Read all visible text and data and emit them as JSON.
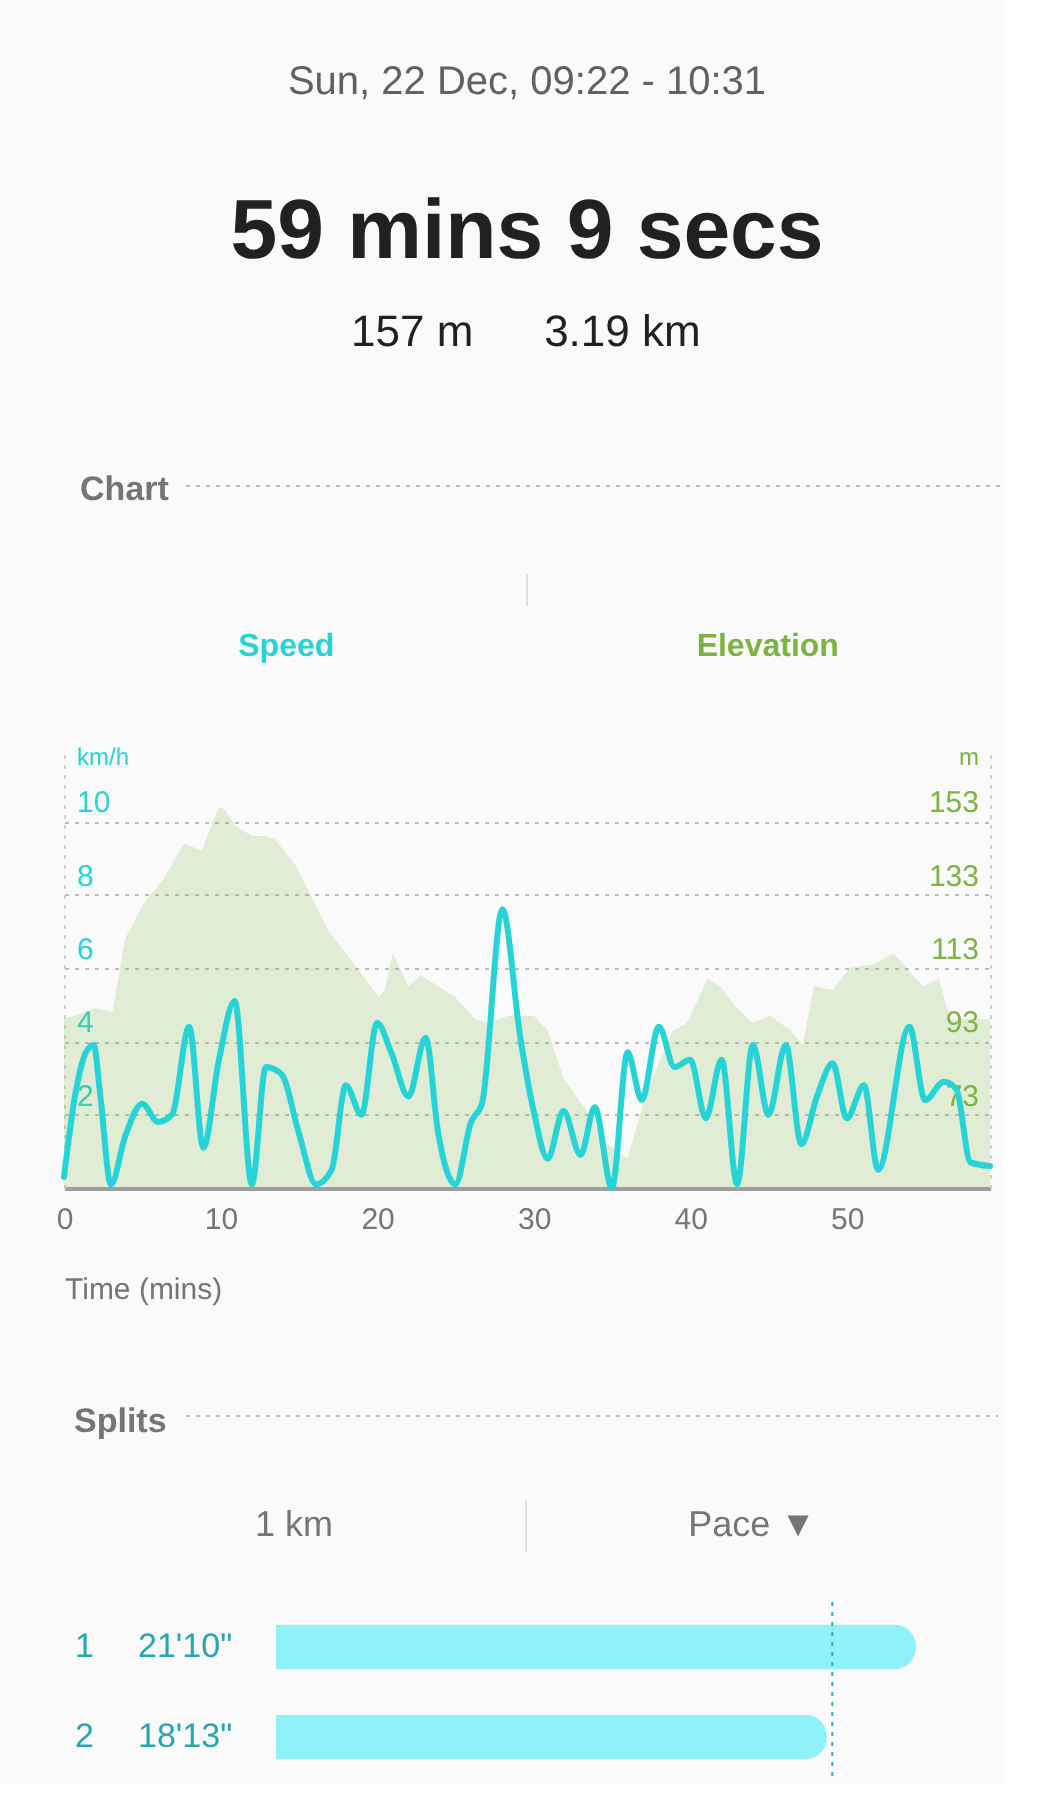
{
  "chart_data": [
    {
      "type": "line",
      "title": "Chart",
      "annotations": [
        "Sun, 22 Dec, 09:22 - 10:31",
        "59 mins 9 secs",
        "157 m",
        "3.19 km"
      ],
      "xlabel": "Time (mins)",
      "ylabel": "km/h",
      "y2label": "m",
      "xlim": [
        0,
        59.15
      ],
      "xticks": [
        0,
        10,
        20,
        30,
        40,
        50
      ],
      "ylim": [
        0,
        12
      ],
      "yticks": [
        2,
        4,
        6,
        8,
        10
      ],
      "y2lim": [
        53,
        173
      ],
      "y2ticks": [
        73,
        93,
        113,
        133,
        153
      ],
      "grid": "y",
      "legend": "top",
      "series": [
        {
          "name": "Speed",
          "type": "line",
          "color": "#26d4d8",
          "x": [
            0,
            0.7,
            1.4,
            1.9,
            2.3,
            3,
            3.9,
            5,
            6,
            6.9,
            8,
            8.9,
            9.9,
            10.9,
            12,
            12.9,
            13.9,
            15,
            16.1,
            17.1,
            18,
            19,
            20,
            20.9,
            22,
            23.1,
            23.9,
            25,
            26,
            26.7,
            28,
            29.15,
            30,
            30.9,
            31.9,
            33,
            33.9,
            35,
            36,
            36.9,
            38,
            39,
            40,
            41,
            42,
            43,
            44,
            45,
            46.1,
            47.1,
            48.1,
            49.1,
            50,
            51.1,
            52,
            54,
            55,
            56.2,
            57,
            57.9,
            59.15
          ],
          "values": [
            0.3,
            2.5,
            3.7,
            3.9,
            2.6,
            0.1,
            1.4,
            2.3,
            1.8,
            2.0,
            4.4,
            1.1,
            3.5,
            5.1,
            0.1,
            3.3,
            3.1,
            1.5,
            0.1,
            0.5,
            2.8,
            2.0,
            4.5,
            3.7,
            2.5,
            4.1,
            1.5,
            0.1,
            1.8,
            2.3,
            7.6,
            4.1,
            2.1,
            0.8,
            2.1,
            0.9,
            2.2,
            0,
            3.7,
            2.4,
            4.4,
            3.3,
            3.5,
            1.9,
            3.5,
            0.1,
            3.9,
            2.0,
            3.9,
            1.2,
            2.5,
            3.4,
            1.9,
            2.8,
            0.5,
            4.4,
            2.4,
            2.9,
            2.7,
            0.7,
            0.6
          ]
        },
        {
          "name": "Elevation",
          "type": "area",
          "axis": "y2",
          "color": "#7cb342",
          "x": [
            0,
            2,
            3.1,
            3.9,
            5,
            6.3,
            7.7,
            8.8,
            9.9,
            10.3,
            10.9,
            12,
            12.9,
            13.5,
            14.8,
            16.9,
            18.2,
            20.1,
            20.5,
            21,
            22,
            22.8,
            25,
            26.3,
            27.1,
            28.4,
            30,
            30.9,
            31.9,
            33.4,
            34.7,
            36,
            37.2,
            38.9,
            39.8,
            41.1,
            41.9,
            42.8,
            44,
            45.1,
            46.4,
            47.2,
            47.9,
            49.1,
            50.2,
            51.7,
            53,
            53.8,
            54.9,
            55.9,
            56.6,
            59.15
          ],
          "values": [
            99,
            102,
            101,
            121,
            130,
            137,
            147,
            145,
            157,
            156,
            152,
            149,
            149,
            148,
            141,
            123,
            116,
            105,
            107,
            117,
            108,
            111,
            105,
            99,
            98,
            100,
            100,
            96,
            83,
            74,
            65,
            61,
            79,
            96,
            98,
            110,
            108,
            103,
            98,
            100,
            96,
            92,
            108,
            107,
            113,
            114,
            117,
            113,
            108,
            110,
            99,
            99
          ]
        }
      ]
    },
    {
      "type": "bar",
      "orientation": "horizontal",
      "title": "Splits",
      "annotations": [
        "1 km",
        "Pace ▼"
      ],
      "categories": [
        "1",
        "2"
      ],
      "values": [
        21.17,
        18.22
      ],
      "value_labels": [
        "21'10\"",
        "18'13\""
      ],
      "color": "#8ef2f8",
      "ref_lines": [
        {
          "axis": "x",
          "value": 18.4,
          "color": "#3ba8b5",
          "line_style": "dotted"
        }
      ]
    }
  ]
}
